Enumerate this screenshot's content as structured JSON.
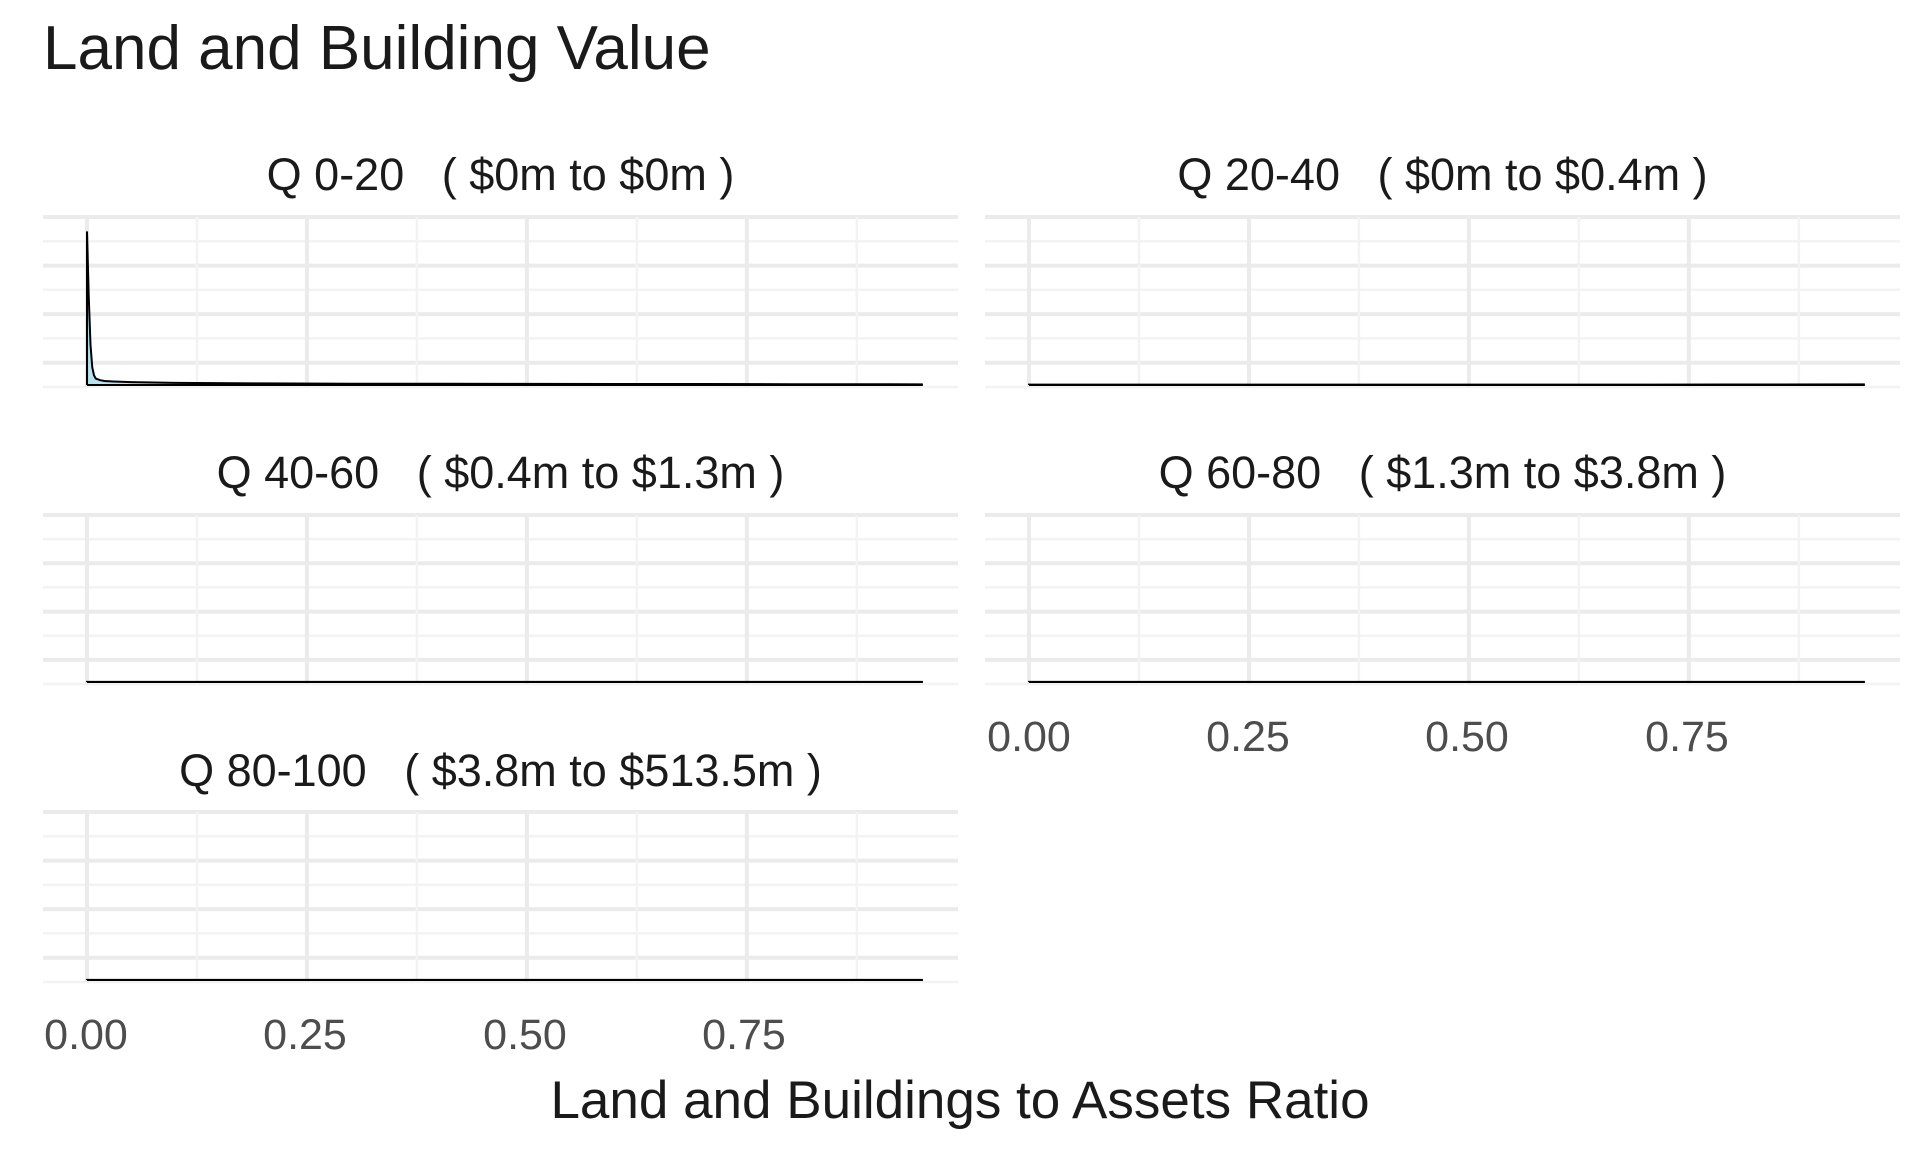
{
  "chart_data": {
    "type": "area",
    "title": "Land and Building Value",
    "xlabel": "Land and Buildings to Assets Ratio",
    "ylabel": "",
    "xlim": [
      -0.05,
      0.99
    ],
    "x_ticks": [
      "0.00",
      "0.25",
      "0.50",
      "0.75"
    ],
    "x_tick_values": [
      0,
      0.25,
      0.5,
      0.75
    ],
    "grid": true,
    "facets": [
      {
        "label": "Q 0-20   ( $0m to $0m )",
        "density": {
          "x": [
            0,
            0.002,
            0.004,
            0.006,
            0.008,
            0.01,
            0.015,
            0.02,
            0.03,
            0.05,
            0.1,
            0.2,
            0.3,
            0.4,
            0.5,
            0.6,
            0.7,
            0.8,
            0.9,
            0.95
          ],
          "y": [
            0.96,
            0.55,
            0.25,
            0.11,
            0.06,
            0.04,
            0.03,
            0.025,
            0.022,
            0.018,
            0.013,
            0.01,
            0.008,
            0.008,
            0.007,
            0.006,
            0.006,
            0.005,
            0.005,
            0.004
          ]
        }
      },
      {
        "label": "Q 20-40   ( $0m to $0.4m )",
        "density": {
          "x": [
            0,
            0.2,
            0.4,
            0.6,
            0.8,
            0.95
          ],
          "y": [
            0.002,
            0.002,
            0.002,
            0.002,
            0.003,
            0.004
          ]
        }
      },
      {
        "label": "Q 40-60   ( $0.4m to $1.3m )",
        "density": {
          "x": [
            0,
            0.2,
            0.4,
            0.6,
            0.8,
            0.95
          ],
          "y": [
            0.001,
            0.001,
            0.001,
            0.001,
            0.001,
            0.001
          ]
        }
      },
      {
        "label": "Q 60-80   ( $1.3m to $3.8m )",
        "density": {
          "x": [
            0,
            0.2,
            0.4,
            0.6,
            0.8,
            0.95
          ],
          "y": [
            0.001,
            0.001,
            0.001,
            0.001,
            0.001,
            0.001
          ]
        }
      },
      {
        "label": "Q 80-100   ( $3.8m to $513.5m )",
        "density": {
          "x": [
            0,
            0.2,
            0.4,
            0.6,
            0.8,
            0.95
          ],
          "y": [
            0.001,
            0.001,
            0.001,
            0.001,
            0.001,
            0.001
          ]
        }
      }
    ],
    "colors": {
      "fill": "#7ec8e3",
      "line": "#000000",
      "grid_major": "#ebebeb",
      "grid_minor": "#f3f3f3"
    }
  }
}
